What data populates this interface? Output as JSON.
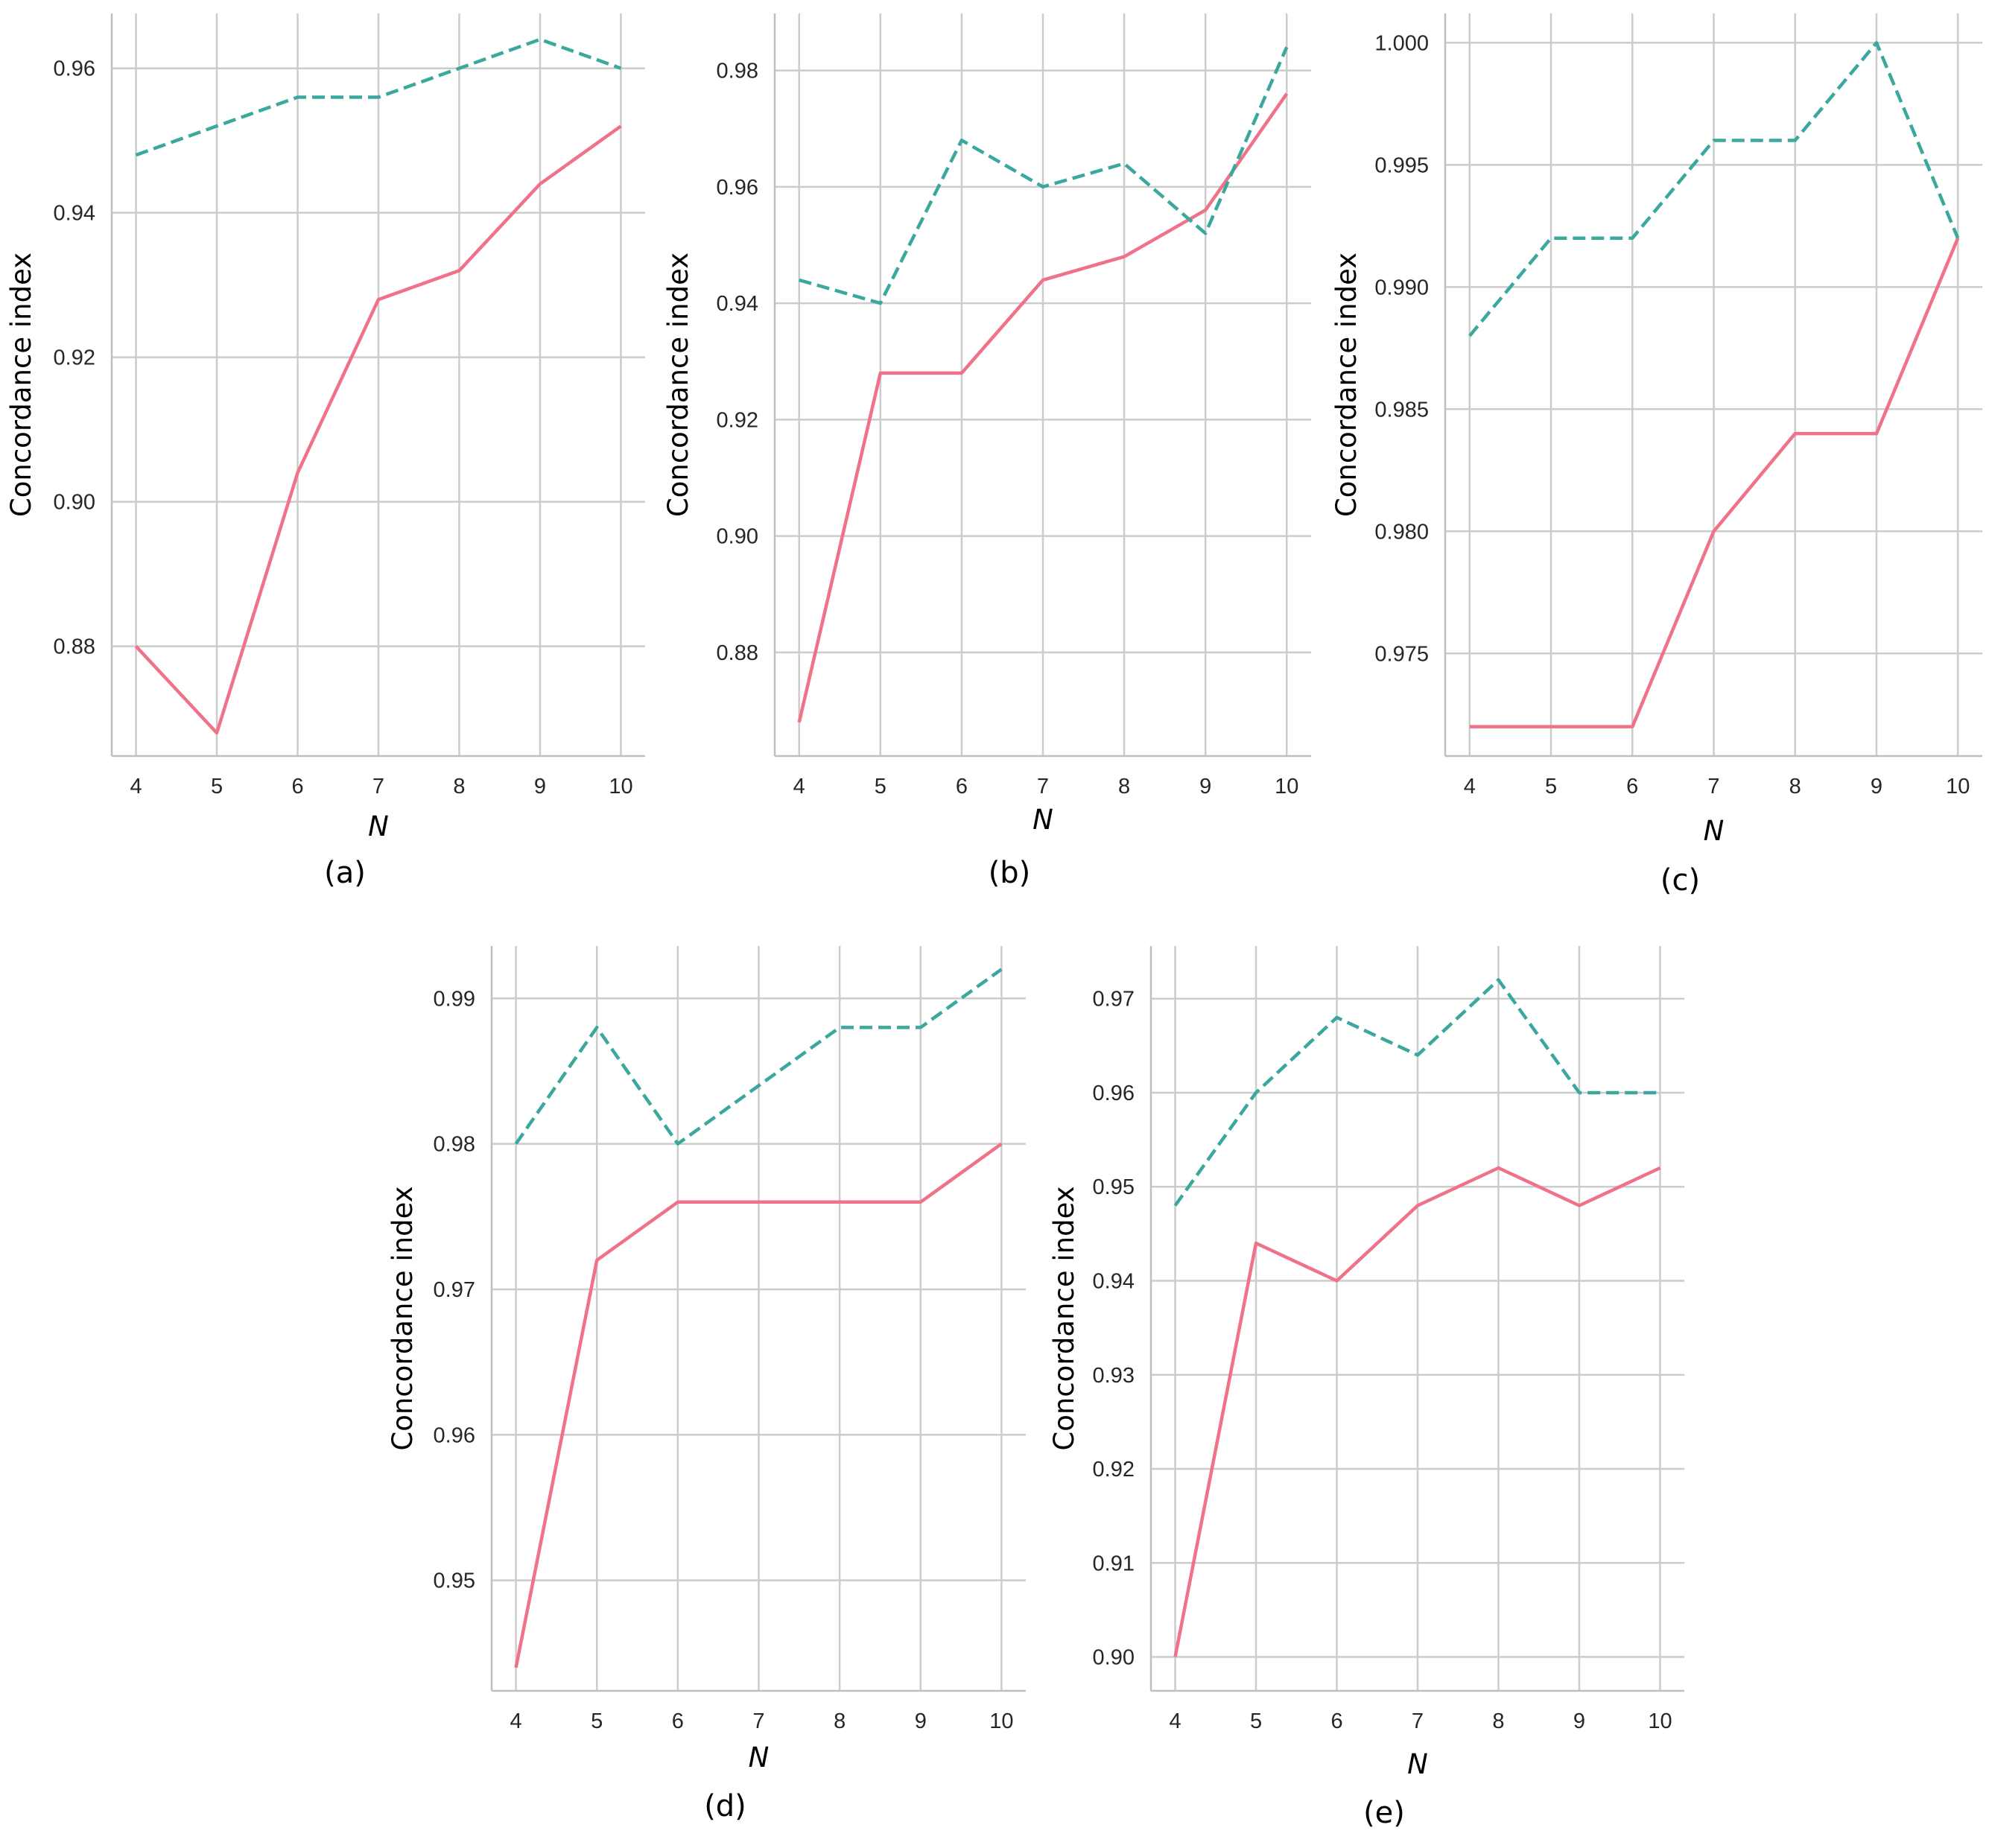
{
  "colors": {
    "solid_series": "#f07289",
    "dashed_series": "#3aa89d",
    "grid": "#cccccc"
  },
  "chart_data": [
    {
      "type": "line",
      "panel": "a",
      "caption": "(a)",
      "xlabel": "N",
      "ylabel": "Concordance index",
      "x": [
        4,
        5,
        6,
        7,
        8,
        9,
        10
      ],
      "xlim": [
        3.7,
        10.3
      ],
      "ylim": [
        0.8648,
        0.9676
      ],
      "yticks": [
        0.88,
        0.9,
        0.92,
        0.94,
        0.96
      ],
      "ytick_labels": [
        "0.88",
        "0.90",
        "0.92",
        "0.94",
        "0.96"
      ],
      "grid": true,
      "series": [
        {
          "style": "solid",
          "values": [
            0.88,
            0.868,
            0.904,
            0.928,
            0.932,
            0.944,
            0.952
          ]
        },
        {
          "style": "dashed",
          "values": [
            0.948,
            0.952,
            0.956,
            0.956,
            0.96,
            0.964,
            0.96
          ]
        }
      ]
    },
    {
      "type": "line",
      "panel": "b",
      "caption": "(b)",
      "xlabel": "N",
      "ylabel": "Concordance index",
      "x": [
        4,
        5,
        6,
        7,
        8,
        9,
        10
      ],
      "xlim": [
        3.7,
        10.3
      ],
      "ylim": [
        0.8622,
        0.9898
      ],
      "yticks": [
        0.88,
        0.9,
        0.92,
        0.94,
        0.96,
        0.98
      ],
      "ytick_labels": [
        "0.88",
        "0.90",
        "0.92",
        "0.94",
        "0.96",
        "0.98"
      ],
      "grid": true,
      "series": [
        {
          "style": "solid",
          "values": [
            0.868,
            0.928,
            0.928,
            0.944,
            0.948,
            0.956,
            0.976
          ]
        },
        {
          "style": "dashed",
          "values": [
            0.944,
            0.94,
            0.968,
            0.96,
            0.964,
            0.952,
            0.984
          ]
        }
      ]
    },
    {
      "type": "line",
      "panel": "c",
      "caption": "(c)",
      "xlabel": "N",
      "ylabel": "Concordance index",
      "x": [
        4,
        5,
        6,
        7,
        8,
        9,
        10
      ],
      "xlim": [
        3.7,
        10.3
      ],
      "ylim": [
        0.9708,
        1.0012
      ],
      "yticks": [
        0.975,
        0.98,
        0.985,
        0.99,
        0.995,
        1.0
      ],
      "ytick_labels": [
        "0.975",
        "0.980",
        "0.985",
        "0.990",
        "0.995",
        "1.000"
      ],
      "grid": true,
      "series": [
        {
          "style": "solid",
          "values": [
            0.972,
            0.972,
            0.972,
            0.98,
            0.984,
            0.984,
            0.992
          ]
        },
        {
          "style": "dashed",
          "values": [
            0.988,
            0.992,
            0.992,
            0.996,
            0.996,
            1.0,
            0.992
          ]
        }
      ]
    },
    {
      "type": "line",
      "panel": "d",
      "caption": "(d)",
      "xlabel": "N",
      "ylabel": "Concordance index",
      "x": [
        4,
        5,
        6,
        7,
        8,
        9,
        10
      ],
      "xlim": [
        3.7,
        10.3
      ],
      "ylim": [
        0.9424,
        0.9936
      ],
      "yticks": [
        0.95,
        0.96,
        0.97,
        0.98,
        0.99
      ],
      "ytick_labels": [
        "0.95",
        "0.96",
        "0.97",
        "0.98",
        "0.99"
      ],
      "grid": true,
      "series": [
        {
          "style": "solid",
          "values": [
            0.944,
            0.972,
            0.976,
            0.976,
            0.976,
            0.976,
            0.98
          ]
        },
        {
          "style": "dashed",
          "values": [
            0.98,
            0.988,
            0.98,
            0.984,
            0.988,
            0.988,
            0.992
          ]
        }
      ]
    },
    {
      "type": "line",
      "panel": "e",
      "caption": "(e)",
      "xlabel": "N",
      "ylabel": "Concordance index",
      "x": [
        4,
        5,
        6,
        7,
        8,
        9,
        10
      ],
      "xlim": [
        3.7,
        10.3
      ],
      "ylim": [
        0.8964,
        0.9756
      ],
      "yticks": [
        0.9,
        0.91,
        0.92,
        0.93,
        0.94,
        0.95,
        0.96,
        0.97
      ],
      "ytick_labels": [
        "0.90",
        "0.91",
        "0.92",
        "0.93",
        "0.94",
        "0.95",
        "0.96",
        "0.97"
      ],
      "grid": true,
      "series": [
        {
          "style": "solid",
          "values": [
            0.9,
            0.944,
            0.94,
            0.948,
            0.952,
            0.948,
            0.952
          ]
        },
        {
          "style": "dashed",
          "values": [
            0.948,
            0.96,
            0.968,
            0.964,
            0.972,
            0.96,
            0.96
          ]
        }
      ]
    }
  ]
}
